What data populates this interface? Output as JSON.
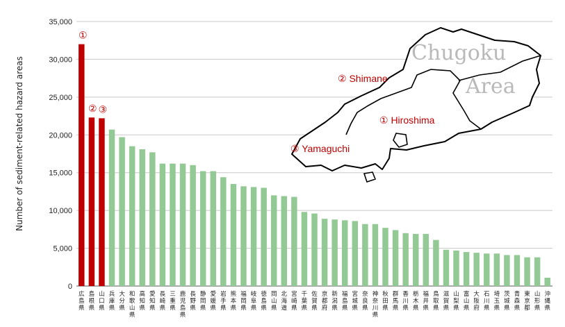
{
  "chart_data": {
    "type": "bar",
    "ylabel": "Number of sediment-related hazard areas",
    "ylim": [
      0,
      35000
    ],
    "yticks": [
      "0",
      "5,000",
      "10,000",
      "15,000",
      "20,000",
      "25,000",
      "30,000",
      "35,000"
    ],
    "grid": true,
    "categories": [
      "広島県",
      "島根県",
      "山口県",
      "兵庫県",
      "大分県",
      "和歌山県",
      "高知県",
      "愛知県",
      "長崎県",
      "三重県",
      "鹿児島県",
      "長野県",
      "静岡県",
      "愛媛県",
      "岩手県",
      "熊本県",
      "福岡県",
      "岐阜県",
      "徳島県",
      "岡山県",
      "北海道",
      "宮崎県",
      "千葉県",
      "佐賀県",
      "京都府",
      "新潟県",
      "福島県",
      "宮城県",
      "奈良県",
      "神奈川県",
      "秋田県",
      "群馬県",
      "香川県",
      "栃木県",
      "福井県",
      "鳥取県",
      "滋賀県",
      "山梨県",
      "富山県",
      "大阪府",
      "石川県",
      "埼玉県",
      "茨城県",
      "青森県",
      "東京都",
      "山形県",
      "沖縄県"
    ],
    "values": [
      32000,
      22300,
      22200,
      20700,
      19700,
      18500,
      18100,
      17700,
      16200,
      16200,
      16200,
      16000,
      15200,
      15200,
      14400,
      13500,
      13200,
      13100,
      13000,
      12000,
      11900,
      11800,
      9800,
      9600,
      8900,
      8800,
      8700,
      8600,
      8200,
      8200,
      7700,
      7400,
      7000,
      6900,
      6900,
      6100,
      4800,
      4700,
      4500,
      4400,
      4300,
      4300,
      4100,
      4100,
      3800,
      3800,
      1100
    ],
    "colors": {
      "highlight": "#c00000",
      "normal": "#93c994"
    },
    "highlight_count": 3,
    "annotations": [
      {
        "text": "①"
      },
      {
        "text": "②"
      },
      {
        "text": "③"
      }
    ]
  },
  "inset_map": {
    "title_line1": "Chugoku",
    "title_line2": "Area",
    "labels": [
      {
        "text": "② Shimane"
      },
      {
        "text": "① Hiroshima"
      },
      {
        "text": "③ Yamaguchi"
      }
    ]
  }
}
